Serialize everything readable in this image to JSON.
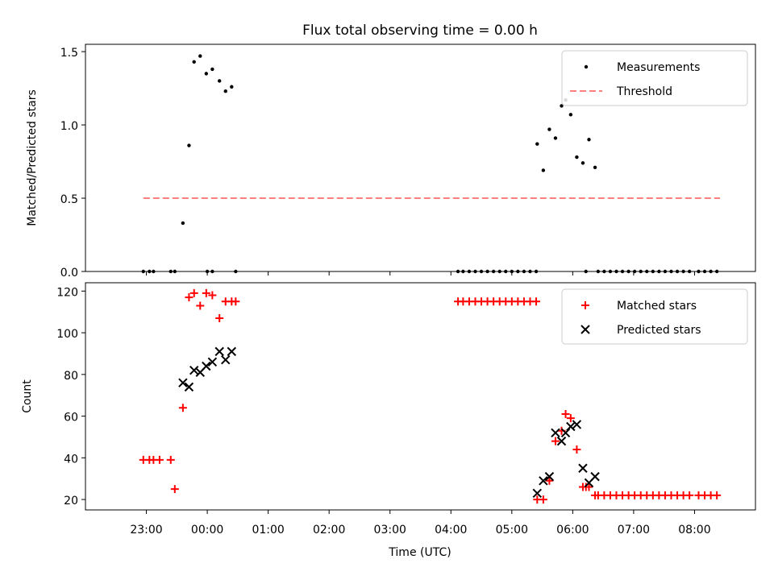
{
  "chart_data": {
    "type": "scatter",
    "title": "Flux total observing time = 0.00 h",
    "xlabel": "Time (UTC)",
    "x_ticks": [
      "23:00",
      "00:00",
      "01:00",
      "02:00",
      "03:00",
      "04:00",
      "05:00",
      "06:00",
      "07:00",
      "08:00"
    ],
    "panels": [
      {
        "ylabel": "Matched/Predicted stars",
        "ylim": [
          0,
          1.55
        ],
        "y_ticks": [
          "0.0",
          "0.5",
          "1.0",
          "1.5"
        ],
        "legend_position": "top-right",
        "series": [
          {
            "name": "Measurements",
            "marker": "dot",
            "color": "#000000",
            "x": [
              "22:57",
              "23:03",
              "23:07",
              "23:24",
              "23:28",
              "23:36",
              "23:42",
              "23:47",
              "23:53",
              "23:59",
              "00:05",
              "00:12",
              "00:18",
              "00:24",
              "00:28",
              "00:00",
              "00:05",
              "04:07",
              "04:12",
              "04:18",
              "04:24",
              "04:30",
              "04:36",
              "04:42",
              "04:48",
              "04:54",
              "05:00",
              "05:06",
              "05:12",
              "05:18",
              "05:24",
              "05:25",
              "05:31",
              "05:37",
              "05:43",
              "05:49",
              "05:53",
              "05:58",
              "06:04",
              "06:10",
              "06:13",
              "06:16",
              "06:22",
              "06:25",
              "06:31",
              "06:37",
              "06:43",
              "06:49",
              "06:55",
              "07:01",
              "07:07",
              "07:13",
              "07:19",
              "07:25",
              "07:31",
              "07:37",
              "07:43",
              "07:49",
              "07:55",
              "08:04",
              "08:10",
              "08:16",
              "08:22"
            ],
            "y": [
              0.0,
              0.0,
              0.0,
              0.0,
              0.0,
              0.33,
              0.86,
              1.43,
              1.47,
              1.35,
              1.38,
              1.3,
              1.23,
              1.26,
              0.0,
              0.0,
              0.0,
              0.0,
              0.0,
              0.0,
              0.0,
              0.0,
              0.0,
              0.0,
              0.0,
              0.0,
              0.0,
              0.0,
              0.0,
              0.0,
              0.0,
              0.87,
              0.69,
              0.97,
              0.91,
              1.13,
              1.17,
              1.07,
              0.78,
              0.74,
              0.0,
              0.9,
              0.71,
              0.0,
              0.0,
              0.0,
              0.0,
              0.0,
              0.0,
              0.0,
              0.0,
              0.0,
              0.0,
              0.0,
              0.0,
              0.0,
              0.0,
              0.0,
              0.0,
              0.0,
              0.0,
              0.0,
              0.0
            ]
          },
          {
            "name": "Threshold",
            "marker": "dashed-line",
            "color": "#ff7f7f",
            "x": [
              "22:57",
              "08:25"
            ],
            "y": [
              0.5,
              0.5
            ]
          }
        ]
      },
      {
        "ylabel": "Count",
        "ylim": [
          15,
          124
        ],
        "y_ticks": [
          "20",
          "40",
          "60",
          "80",
          "100",
          "120"
        ],
        "legend_position": "top-right",
        "series": [
          {
            "name": "Matched stars",
            "marker": "plus",
            "color": "#ff0000",
            "x": [
              "22:57",
              "23:03",
              "23:07",
              "23:13",
              "23:24",
              "23:28",
              "23:36",
              "23:42",
              "23:47",
              "23:53",
              "23:59",
              "00:05",
              "00:12",
              "00:18",
              "00:24",
              "00:28",
              "04:07",
              "04:12",
              "04:18",
              "04:24",
              "04:30",
              "04:36",
              "04:42",
              "04:48",
              "04:54",
              "05:00",
              "05:06",
              "05:12",
              "05:18",
              "05:24",
              "05:25",
              "05:31",
              "05:37",
              "05:43",
              "05:49",
              "05:53",
              "05:58",
              "06:04",
              "06:10",
              "06:13",
              "06:16",
              "06:22",
              "06:25",
              "06:31",
              "06:37",
              "06:43",
              "06:49",
              "06:55",
              "07:01",
              "07:07",
              "07:13",
              "07:19",
              "07:25",
              "07:31",
              "07:37",
              "07:43",
              "07:49",
              "07:55",
              "08:04",
              "08:10",
              "08:16",
              "08:22"
            ],
            "y": [
              39,
              39,
              39,
              39,
              39,
              25,
              64,
              117,
              119,
              113,
              119,
              118,
              107,
              115,
              115,
              115,
              115,
              115,
              115,
              115,
              115,
              115,
              115,
              115,
              115,
              115,
              115,
              115,
              115,
              115,
              20,
              20,
              29,
              48,
              53,
              61,
              59,
              44,
              26,
              26,
              26,
              22,
              22,
              22,
              22,
              22,
              22,
              22,
              22,
              22,
              22,
              22,
              22,
              22,
              22,
              22,
              22,
              22,
              22,
              22,
              22,
              22
            ]
          },
          {
            "name": "Predicted stars",
            "marker": "x",
            "color": "#000000",
            "x": [
              "23:36",
              "23:42",
              "23:47",
              "23:53",
              "23:59",
              "00:05",
              "00:12",
              "00:18",
              "00:24",
              "05:25",
              "05:31",
              "05:37",
              "05:43",
              "05:49",
              "05:53",
              "05:58",
              "06:04",
              "06:10",
              "06:16",
              "06:22"
            ],
            "y": [
              76,
              74,
              82,
              81,
              84,
              86,
              91,
              87,
              91,
              23,
              29,
              31,
              52,
              48,
              52,
              55,
              56,
              35,
              28,
              31
            ]
          }
        ]
      }
    ]
  }
}
